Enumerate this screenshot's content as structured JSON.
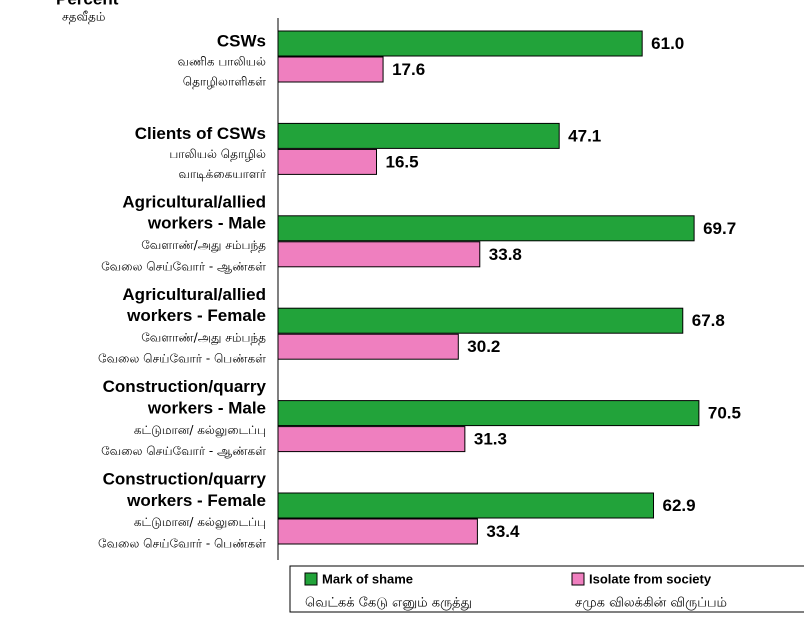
{
  "chart_data": {
    "type": "bar",
    "orientation": "horizontal",
    "title": "Percent",
    "subtitle": "சதவீதம்",
    "categories": [
      [
        "CSWs"
      ],
      [
        "Clients of CSWs"
      ],
      [
        "Agricultural/allied",
        "workers - Male"
      ],
      [
        "Agricultural/allied",
        "workers - Female"
      ],
      [
        "Construction/quarry",
        "workers - Male"
      ],
      [
        "Construction/quarry",
        "workers - Female"
      ]
    ],
    "categories_tamil": [
      [
        "வணிக பாலியல்",
        "தொழிலாளிகள்"
      ],
      [
        "பாலியல் தொழில்",
        "வாடிக்கையாளர்"
      ],
      [
        "வேளாண்/அது சம்பந்த",
        "வேலை செய்வோர் - ஆண்கள்"
      ],
      [
        "வேளாண்/அது சம்பந்த",
        "வேலை செய்வோர் - பெண்கள்"
      ],
      [
        "கட்டுமான/ கல்லுடைப்பு",
        "வேலை செய்வோர் - ஆண்கள்"
      ],
      [
        "கட்டுமான/ கல்லுடைப்பு",
        "வேலை செய்வோர் - பெண்கள்"
      ]
    ],
    "series": [
      {
        "name": "Mark of shame",
        "name_tamil": "வெட்கக் கேடு எனும் கருத்து",
        "color": "#22a33a",
        "values": [
          61.0,
          47.1,
          69.7,
          67.8,
          70.5,
          62.9
        ],
        "value_labels": [
          "61.0",
          "47.1",
          "69.7",
          "67.8",
          "70.5",
          "62.9"
        ]
      },
      {
        "name": "Isolate from society",
        "name_tamil": "சமுக விலக்கின் விருப்பம்",
        "color": "#ef7fbf",
        "values": [
          17.6,
          16.5,
          33.8,
          30.2,
          31.3,
          33.4
        ],
        "value_labels": [
          "17.6",
          "16.5",
          "33.8",
          "30.2",
          "31.3",
          "33.4"
        ]
      }
    ]
  }
}
